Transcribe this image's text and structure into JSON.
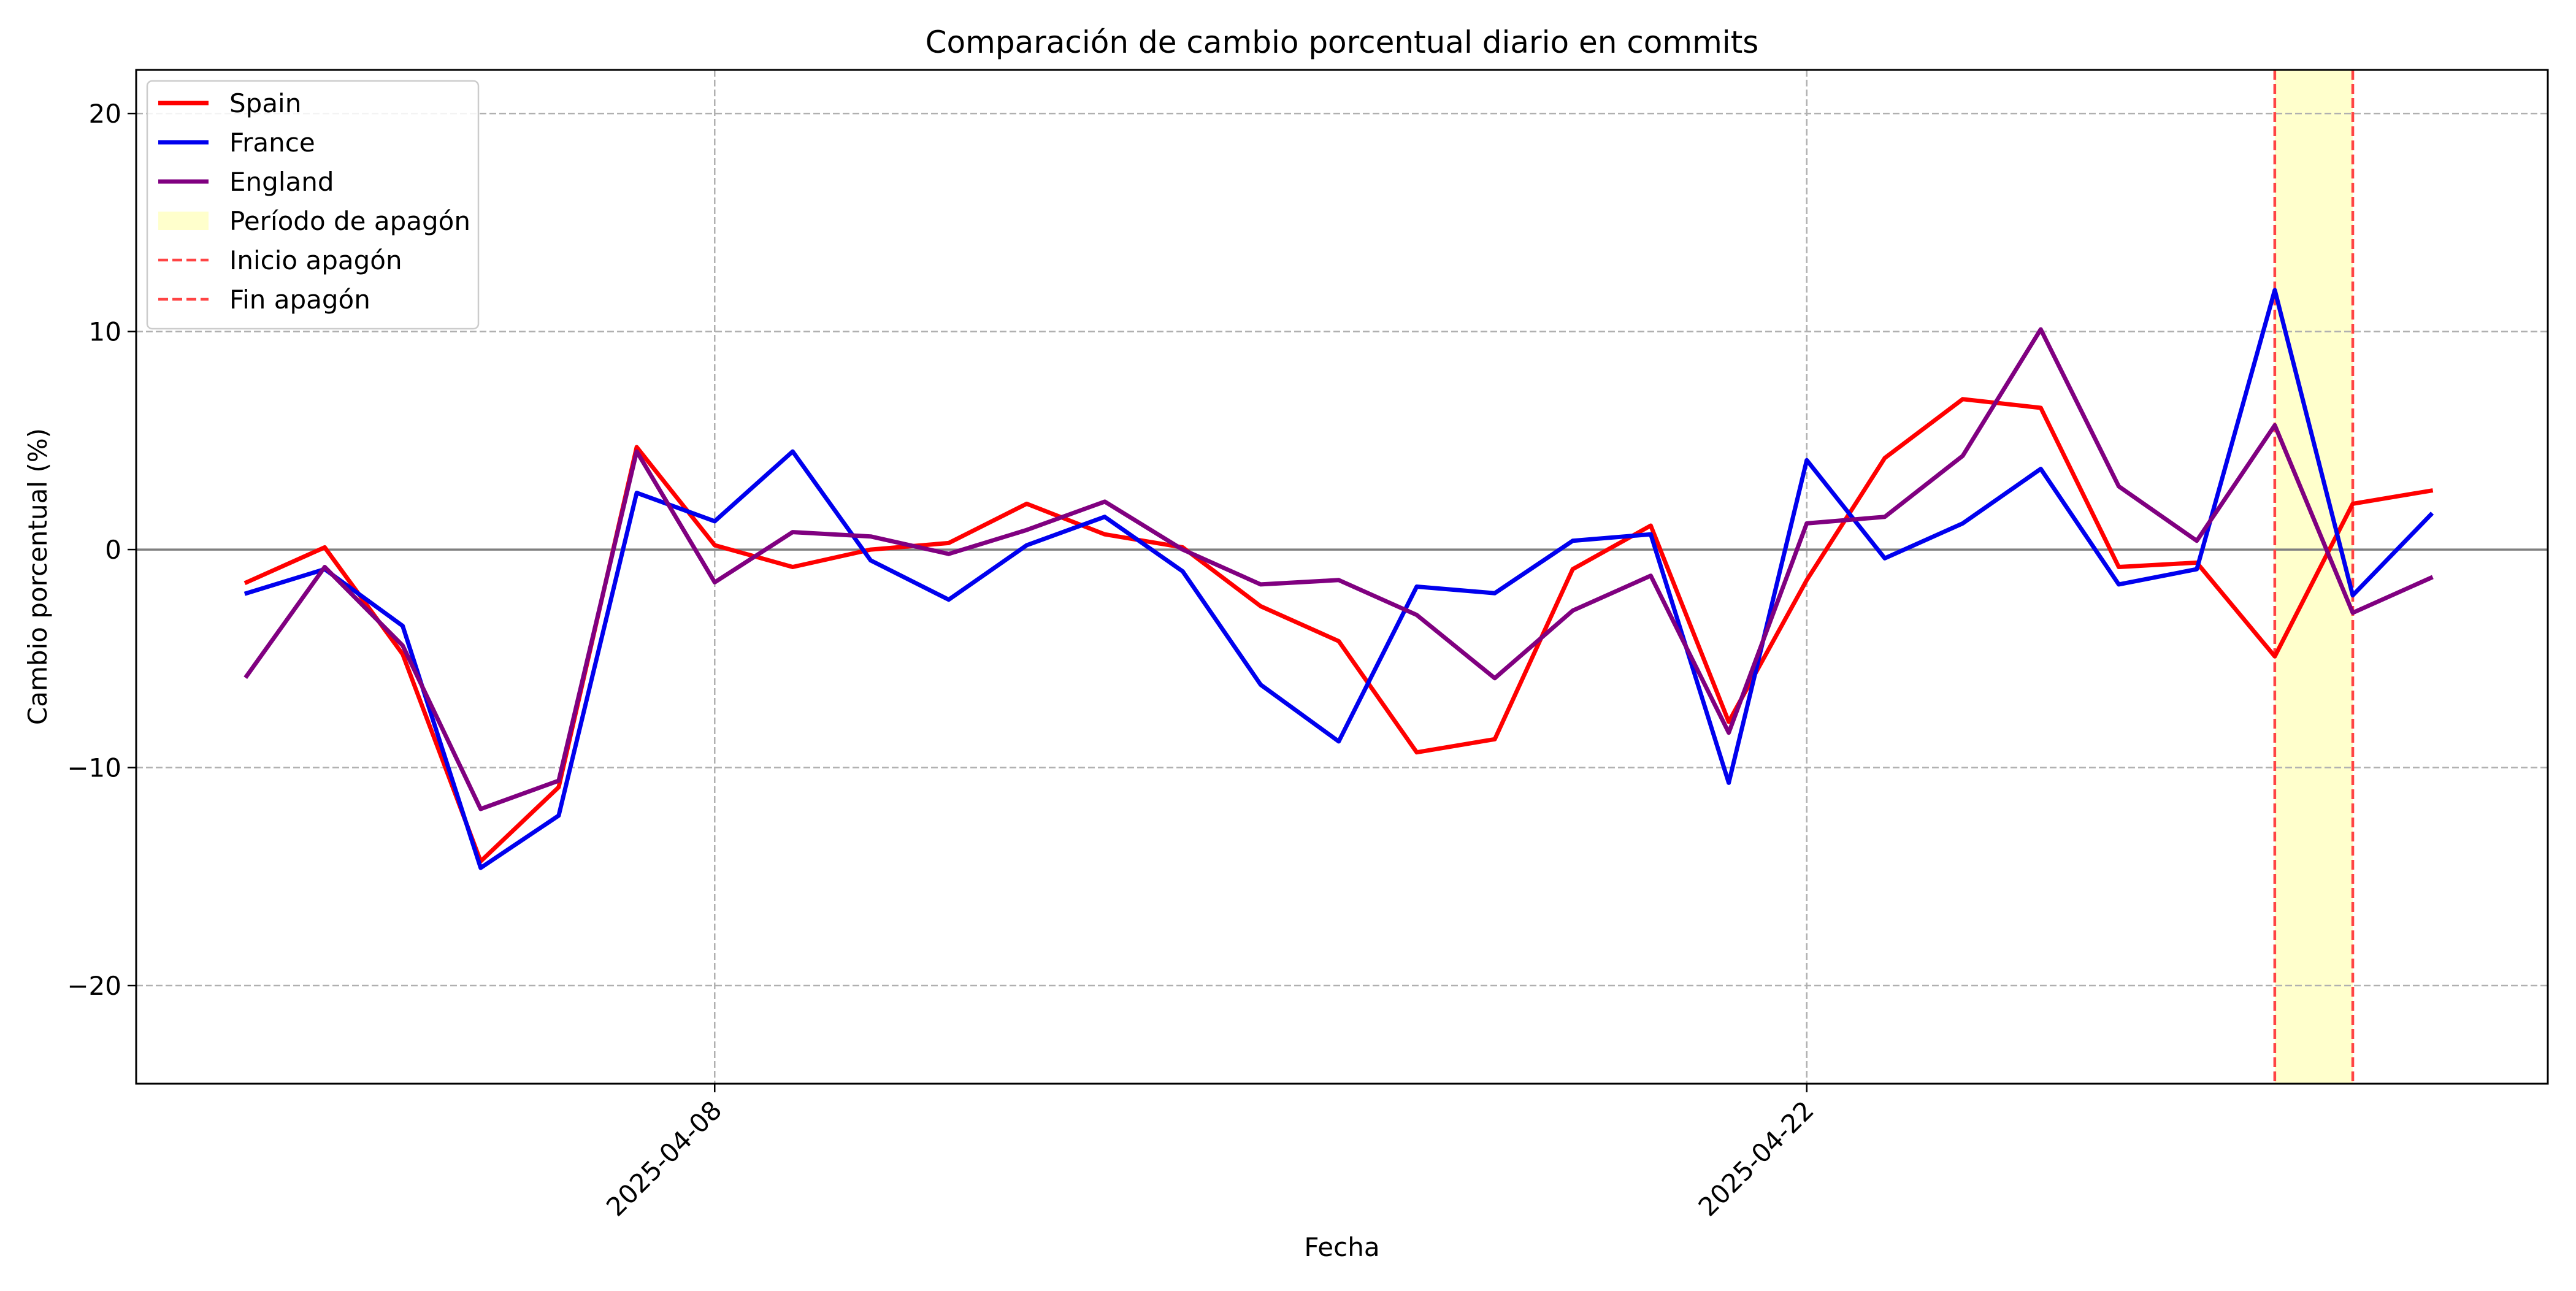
{
  "chart_data": {
    "type": "line",
    "title": "Comparación de cambio porcentual diario en commits",
    "xlabel": "Fecha",
    "ylabel": "Cambio porcentual (%)",
    "x": [
      "2025-04-02",
      "2025-04-03",
      "2025-04-04",
      "2025-04-05",
      "2025-04-06",
      "2025-04-07",
      "2025-04-08",
      "2025-04-09",
      "2025-04-10",
      "2025-04-11",
      "2025-04-12",
      "2025-04-13",
      "2025-04-14",
      "2025-04-15",
      "2025-04-16",
      "2025-04-17",
      "2025-04-18",
      "2025-04-19",
      "2025-04-20",
      "2025-04-21",
      "2025-04-22",
      "2025-04-23",
      "2025-04-24",
      "2025-04-25",
      "2025-04-26",
      "2025-04-27",
      "2025-04-28",
      "2025-04-29",
      "2025-04-30"
    ],
    "x_range": [
      "2025-03-31T14:00",
      "2025-05-01T12:00"
    ],
    "ylim": [
      -24.5,
      22
    ],
    "yticks": [
      -20,
      -10,
      0,
      10,
      20
    ],
    "xticks": [
      "2025-04-08",
      "2025-04-22"
    ],
    "grid": true,
    "legend_position": "top-left",
    "series": [
      {
        "name": "Spain",
        "color": "#ff0000",
        "values": [
          -1.5,
          0.1,
          -4.8,
          -14.3,
          -10.9,
          4.7,
          0.2,
          -0.8,
          0.0,
          0.3,
          2.1,
          0.7,
          0.1,
          -2.6,
          -4.2,
          -9.3,
          -8.7,
          -0.9,
          1.1,
          -7.9,
          -1.4,
          4.2,
          6.9,
          6.5,
          -0.8,
          -0.6,
          -4.9,
          2.1,
          2.7
        ]
      },
      {
        "name": "France",
        "color": "#0000ee",
        "values": [
          -2.0,
          -0.9,
          -3.5,
          -14.6,
          -12.2,
          2.6,
          1.3,
          4.5,
          -0.5,
          -2.3,
          0.2,
          1.5,
          -1.0,
          -6.2,
          -8.8,
          -1.7,
          -2.0,
          0.4,
          0.7,
          -10.7,
          4.1,
          -0.4,
          1.2,
          3.7,
          -1.6,
          -0.9,
          11.9,
          -2.1,
          1.6
        ]
      },
      {
        "name": "England",
        "color": "#800080",
        "values": [
          -5.8,
          -0.8,
          -4.4,
          -11.9,
          -10.6,
          4.5,
          -1.5,
          0.8,
          0.6,
          -0.2,
          0.9,
          2.2,
          0.0,
          -1.6,
          -1.4,
          -3.0,
          -5.9,
          -2.8,
          -1.2,
          -8.4,
          1.2,
          1.5,
          4.3,
          10.1,
          2.9,
          0.4,
          5.7,
          -2.9,
          -1.3
        ]
      }
    ],
    "blackout": {
      "start": "2025-04-28",
      "end": "2025-04-29",
      "fill_color": "#ffffcc",
      "line_color": "#ff4444"
    },
    "legend_entries": [
      {
        "label": "Spain",
        "kind": "line",
        "series": "Spain"
      },
      {
        "label": "France",
        "kind": "line",
        "series": "France"
      },
      {
        "label": "England",
        "kind": "line",
        "series": "England"
      },
      {
        "label": "Período de apagón",
        "kind": "patch"
      },
      {
        "label": "Inicio apagón",
        "kind": "dashed"
      },
      {
        "label": "Fin apagón",
        "kind": "dashed"
      }
    ]
  }
}
